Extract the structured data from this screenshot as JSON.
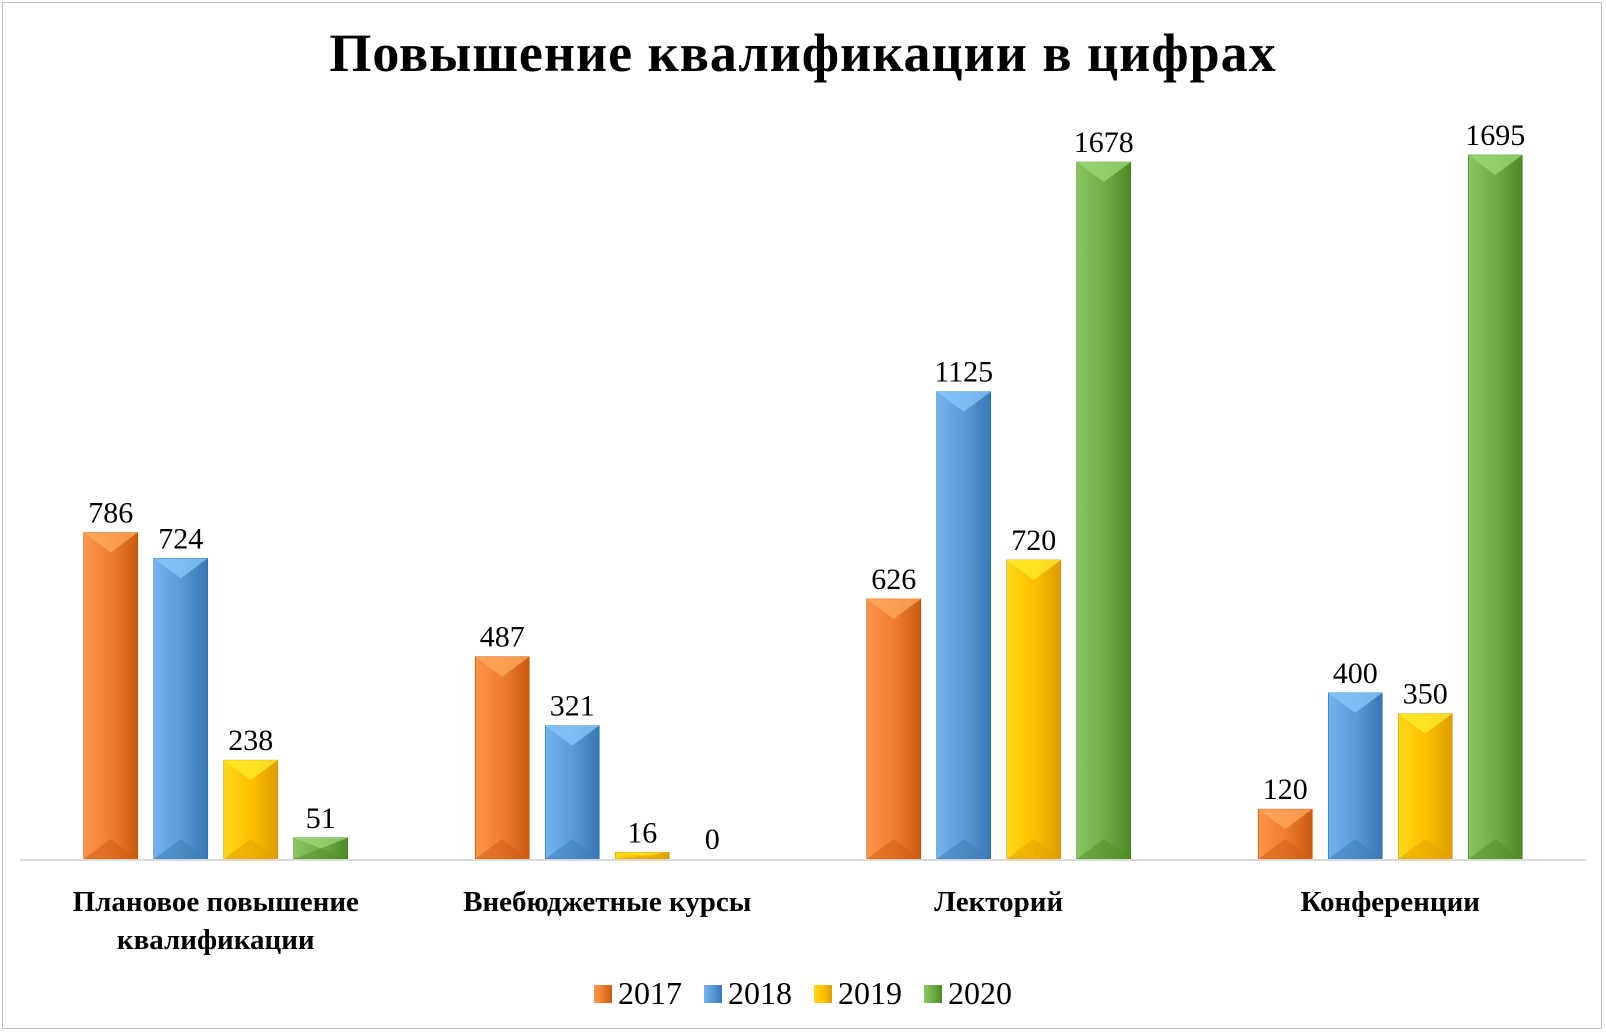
{
  "chart_data": {
    "type": "bar",
    "title": "Повышение квалификации в цифрах",
    "categories": [
      [
        "Плановое повышение",
        "квалификации"
      ],
      [
        "Внебюджетные курсы"
      ],
      [
        "Лекторий"
      ],
      [
        "Конференции"
      ]
    ],
    "series": [
      {
        "name": "2017",
        "color": "#ED7D31",
        "values": [
          786,
          487,
          626,
          120
        ]
      },
      {
        "name": "2018",
        "color": "#5B9BD5",
        "values": [
          724,
          321,
          1125,
          400
        ]
      },
      {
        "name": "2019",
        "color": "#FFC000",
        "values": [
          238,
          16,
          720,
          350
        ]
      },
      {
        "name": "2020",
        "color": "#70AD47",
        "values": [
          51,
          0,
          1678,
          1695
        ]
      }
    ],
    "ylim": [
      0,
      1695
    ],
    "grid": false,
    "legend_position": "bottom",
    "data_labels": true
  }
}
